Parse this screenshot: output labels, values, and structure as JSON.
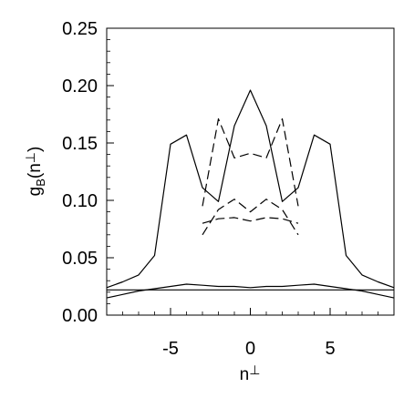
{
  "chart_data": {
    "type": "line",
    "title": "",
    "xlabel_base": "n",
    "xlabel_sup": "⊥",
    "ylabel_base": "g",
    "ylabel_sub": "B",
    "ylabel_open": "(n",
    "ylabel_sup": "⊥",
    "ylabel_close": ")",
    "xlim": [
      -9,
      9
    ],
    "ylim": [
      0,
      0.25
    ],
    "x_ticks": [
      -5,
      0,
      5
    ],
    "x_tick_labels": [
      "-5",
      "0",
      "5"
    ],
    "y_ticks": [
      0,
      0.05,
      0.1,
      0.15,
      0.2,
      0.25
    ],
    "y_tick_labels": [
      "0.00",
      "0.05",
      "0.10",
      "0.15",
      "0.20",
      "0.25"
    ],
    "grid": false,
    "series": [
      {
        "style": "solid",
        "x": [
          -9,
          -8,
          -7,
          -6,
          -5,
          -4,
          -3,
          -2,
          -1,
          0,
          1,
          2,
          3,
          4,
          5,
          6,
          7,
          8,
          9
        ],
        "y": [
          0.024,
          0.029,
          0.035,
          0.052,
          0.149,
          0.157,
          0.111,
          0.099,
          0.165,
          0.196,
          0.165,
          0.099,
          0.111,
          0.157,
          0.149,
          0.052,
          0.035,
          0.029,
          0.024
        ]
      },
      {
        "style": "solid",
        "x": [
          -9,
          -8,
          -7,
          -6,
          -5,
          -4,
          -3,
          -2,
          -1,
          0,
          1,
          2,
          3,
          4,
          5,
          6,
          7,
          8,
          9
        ],
        "y": [
          0.015,
          0.018,
          0.021,
          0.023,
          0.025,
          0.027,
          0.026,
          0.025,
          0.025,
          0.024,
          0.025,
          0.025,
          0.026,
          0.027,
          0.025,
          0.023,
          0.021,
          0.018,
          0.015
        ]
      },
      {
        "style": "solid",
        "x": [
          -9,
          9
        ],
        "y": [
          0.022,
          0.022
        ]
      },
      {
        "style": "dashed",
        "x": [
          -3,
          -2,
          -1,
          0,
          1,
          2,
          3
        ],
        "y": [
          0.095,
          0.171,
          0.137,
          0.141,
          0.137,
          0.171,
          0.095
        ]
      },
      {
        "style": "dashed",
        "x": [
          -3,
          -2,
          -1,
          0,
          1,
          2,
          3
        ],
        "y": [
          0.07,
          0.092,
          0.101,
          0.09,
          0.101,
          0.092,
          0.07
        ]
      },
      {
        "style": "dashed",
        "x": [
          -3,
          -2,
          -1,
          0,
          1,
          2,
          3
        ],
        "y": [
          0.08,
          0.084,
          0.085,
          0.082,
          0.085,
          0.084,
          0.08
        ]
      }
    ]
  }
}
